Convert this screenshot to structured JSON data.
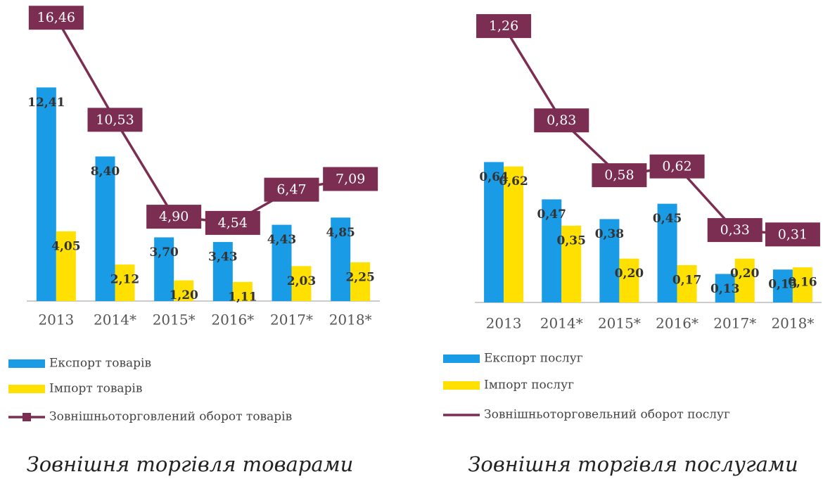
{
  "chart_data": [
    {
      "type": "bar",
      "title": "Зовнішня торгівля товарами",
      "categories": [
        "2013",
        "2014*",
        "2015*",
        "2016*",
        "2017*",
        "2018*"
      ],
      "ylim": [
        0,
        17
      ],
      "series": [
        {
          "name": "Експорт товарів",
          "color": "#1a9be6",
          "values": [
            12.41,
            8.4,
            3.7,
            3.43,
            4.43,
            4.85
          ],
          "value_labels": [
            "12,41",
            "8,40",
            "3,70",
            "3,43",
            "4,43",
            "4,85"
          ]
        },
        {
          "name": "Імпорт товарів",
          "color": "#ffe000",
          "values": [
            4.05,
            2.12,
            1.2,
            1.11,
            2.03,
            2.25
          ],
          "value_labels": [
            "4,05",
            "2,12",
            "1,20",
            "1,11",
            "2,03",
            "2,25"
          ]
        },
        {
          "name": "Зовнішньоторговлений оборот товарів",
          "type": "line",
          "marker": "square",
          "color": "#7b2d52",
          "values": [
            16.46,
            10.53,
            4.9,
            4.54,
            6.47,
            7.09
          ],
          "value_labels": [
            "16,46",
            "10,53",
            "4,90",
            "4,54",
            "6,47",
            "7,09"
          ]
        }
      ]
    },
    {
      "type": "bar",
      "title": "Зовнішня торгівля послугами",
      "categories": [
        "2013",
        "2014*",
        "2015*",
        "2016*",
        "2017*",
        "2018*"
      ],
      "ylim": [
        0,
        1.35
      ],
      "series": [
        {
          "name": "Експорт послуг",
          "color": "#1a9be6",
          "values": [
            0.64,
            0.47,
            0.38,
            0.45,
            0.13,
            0.15
          ],
          "value_labels": [
            "0,64",
            "0,47",
            "0,38",
            "0,45",
            "0,13",
            "0,15"
          ]
        },
        {
          "name": "Імпорт послуг",
          "color": "#ffe000",
          "values": [
            0.62,
            0.35,
            0.2,
            0.17,
            0.2,
            0.16
          ],
          "value_labels": [
            "0,62",
            "0,35",
            "0,20",
            "0,17",
            "0,20",
            "0,16"
          ]
        },
        {
          "name": "Зовнішньоторговельний оборот послуг",
          "type": "line",
          "color": "#7b2d52",
          "values": [
            1.26,
            0.83,
            0.58,
            0.62,
            0.33,
            0.31
          ],
          "value_labels": [
            "1,26",
            "0,83",
            "0,58",
            "0,62",
            "0,33",
            "0,31"
          ]
        }
      ]
    }
  ]
}
